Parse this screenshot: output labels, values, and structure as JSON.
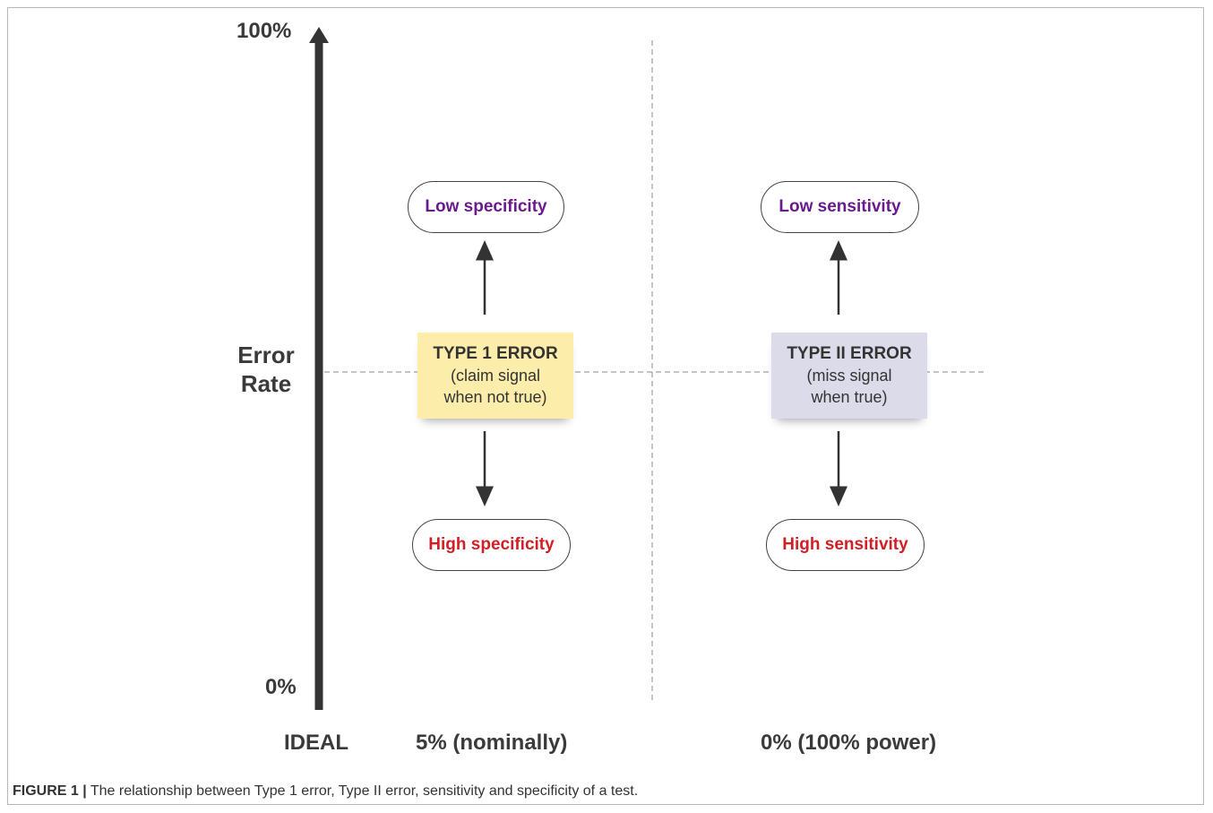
{
  "axis": {
    "top_label": "100%",
    "bottom_label": "0%",
    "title_line1": "Error",
    "title_line2": "Rate"
  },
  "left_column": {
    "top_pill": "Low specificity",
    "box_title": "TYPE 1 ERROR",
    "box_line1": "(claim signal",
    "box_line2": "when not true)",
    "bottom_pill": "High specificity",
    "box_color": "#fcedab"
  },
  "right_column": {
    "top_pill": "Low sensitivity",
    "box_title": "TYPE II ERROR",
    "box_line1": "(miss signal",
    "box_line2": "when true)",
    "bottom_pill": "High sensitivity",
    "box_color": "#dcdbe9"
  },
  "bottom_labels": {
    "ideal": "IDEAL",
    "type1": "5% (nominally)",
    "type2": "0% (100% power)"
  },
  "colors": {
    "low_text": "#6b1a8c",
    "high_text": "#d21f26",
    "axis": "#333333"
  },
  "caption": {
    "label": "FIGURE 1 |",
    "text": " The relationship between Type 1 error, Type II error, sensitivity and specificity of a test."
  }
}
